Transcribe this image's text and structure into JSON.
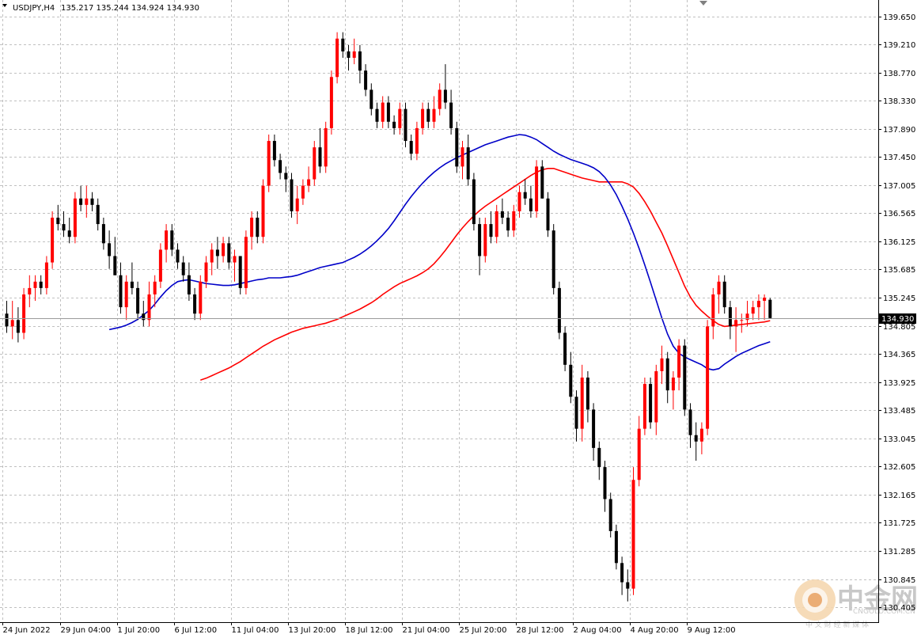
{
  "header": {
    "symbol": "USDJPY,H4",
    "ohlc": "135.217 135.244 134.924 134.930"
  },
  "price_tag": "134.930",
  "watermark": {
    "brand_cn": "中金网",
    "brand_url": "CNGOLD.COM.CN",
    "slogan_cn": "中 文 财 经 新 媒 体"
  },
  "colors": {
    "bull": "#ff0000",
    "bear": "#000000",
    "ma_fast": "#0000c8",
    "ma_slow": "#ff0000",
    "grid": "#c0c0c0"
  },
  "chart_data": {
    "type": "candlestick",
    "symbol": "USDJPY",
    "timeframe": "H4",
    "ylim": [
      130.265,
      139.85
    ],
    "y_ticks": [
      "139.650",
      "139.210",
      "138.770",
      "138.330",
      "137.890",
      "137.450",
      "137.005",
      "136.565",
      "136.125",
      "135.685",
      "135.245",
      "134.805",
      "134.365",
      "133.925",
      "133.485",
      "133.045",
      "132.605",
      "132.165",
      "131.725",
      "131.285",
      "130.845",
      "130.405"
    ],
    "x_ticks": [
      "24 Jun 2022",
      "29 Jun 04:00",
      "1 Jul 20:00",
      "6 Jul 12:00",
      "11 Jul 04:00",
      "13 Jul 20:00",
      "18 Jul 12:00",
      "21 Jul 04:00",
      "25 Jul 20:00",
      "28 Jul 12:00",
      "2 Aug 04:00",
      "4 Aug 20:00",
      "9 Aug 12:00"
    ],
    "grid": true,
    "last_price": 134.93,
    "candles": [
      [
        135.0,
        135.2,
        134.7,
        134.8
      ],
      [
        134.8,
        135.2,
        134.6,
        134.9
      ],
      [
        134.9,
        135.1,
        134.55,
        134.7
      ],
      [
        134.7,
        135.4,
        134.6,
        135.3
      ],
      [
        135.3,
        135.6,
        135.1,
        135.4
      ],
      [
        135.4,
        135.6,
        135.2,
        135.5
      ],
      [
        135.5,
        135.6,
        135.3,
        135.4
      ],
      [
        135.4,
        135.9,
        135.3,
        135.8
      ],
      [
        135.8,
        136.6,
        135.7,
        136.5
      ],
      [
        136.5,
        136.7,
        136.3,
        136.4
      ],
      [
        136.4,
        136.6,
        136.2,
        136.3
      ],
      [
        136.3,
        136.5,
        136.1,
        136.2
      ],
      [
        136.2,
        136.9,
        136.1,
        136.8
      ],
      [
        136.8,
        137.0,
        136.6,
        136.7
      ],
      [
        136.7,
        137.0,
        136.5,
        136.8
      ],
      [
        136.8,
        136.9,
        136.6,
        136.7
      ],
      [
        136.7,
        136.8,
        136.3,
        136.4
      ],
      [
        136.4,
        136.5,
        136.0,
        136.1
      ],
      [
        136.1,
        136.3,
        135.7,
        135.9
      ],
      [
        135.9,
        136.2,
        135.6,
        135.6
      ],
      [
        135.6,
        135.8,
        135.0,
        135.1
      ],
      [
        135.1,
        135.6,
        134.9,
        135.5
      ],
      [
        135.5,
        135.8,
        135.3,
        135.4
      ],
      [
        135.4,
        135.5,
        134.9,
        135.0
      ],
      [
        135.0,
        135.2,
        134.8,
        134.9
      ],
      [
        134.9,
        135.5,
        134.8,
        135.3
      ],
      [
        135.3,
        135.6,
        135.1,
        135.5
      ],
      [
        135.5,
        136.1,
        135.4,
        136.0
      ],
      [
        136.0,
        136.4,
        135.8,
        136.3
      ],
      [
        136.3,
        136.4,
        135.9,
        136.0
      ],
      [
        136.0,
        136.1,
        135.7,
        135.8
      ],
      [
        135.8,
        135.9,
        135.5,
        135.6
      ],
      [
        135.6,
        135.8,
        135.2,
        135.3
      ],
      [
        135.3,
        135.4,
        134.9,
        135.0
      ],
      [
        135.0,
        135.6,
        134.9,
        135.5
      ],
      [
        135.5,
        135.9,
        135.4,
        135.8
      ],
      [
        135.8,
        136.1,
        135.6,
        136.0
      ],
      [
        136.0,
        136.2,
        135.7,
        135.9
      ],
      [
        135.9,
        136.2,
        135.8,
        136.1
      ],
      [
        136.1,
        136.2,
        135.7,
        135.8
      ],
      [
        135.8,
        136.0,
        135.5,
        135.9
      ],
      [
        135.9,
        135.9,
        135.3,
        135.4
      ],
      [
        135.4,
        136.3,
        135.3,
        136.2
      ],
      [
        136.2,
        136.6,
        136.0,
        136.5
      ],
      [
        136.5,
        136.6,
        136.1,
        136.2
      ],
      [
        136.2,
        137.1,
        136.1,
        137.0
      ],
      [
        137.0,
        137.8,
        136.9,
        137.7
      ],
      [
        137.7,
        137.8,
        137.3,
        137.4
      ],
      [
        137.4,
        137.5,
        137.1,
        137.2
      ],
      [
        137.2,
        137.3,
        136.9,
        137.1
      ],
      [
        137.1,
        137.2,
        136.5,
        136.6
      ],
      [
        136.6,
        137.0,
        136.4,
        136.8
      ],
      [
        136.8,
        137.1,
        136.7,
        137.0
      ],
      [
        137.0,
        137.3,
        136.9,
        137.1
      ],
      [
        137.1,
        137.7,
        137.0,
        137.6
      ],
      [
        137.6,
        137.9,
        137.2,
        137.3
      ],
      [
        137.3,
        138.0,
        137.2,
        137.9
      ],
      [
        137.9,
        138.8,
        137.8,
        138.7
      ],
      [
        138.7,
        139.4,
        138.6,
        139.3
      ],
      [
        139.3,
        139.4,
        139.0,
        139.1
      ],
      [
        139.1,
        139.2,
        138.8,
        139.0
      ],
      [
        139.0,
        139.3,
        138.9,
        139.1
      ],
      [
        139.1,
        139.2,
        138.6,
        138.8
      ],
      [
        138.8,
        138.9,
        138.4,
        138.5
      ],
      [
        138.5,
        138.6,
        138.1,
        138.2
      ],
      [
        138.2,
        138.3,
        137.9,
        138.0
      ],
      [
        138.0,
        138.4,
        137.9,
        138.3
      ],
      [
        138.3,
        138.4,
        137.9,
        138.0
      ],
      [
        138.0,
        138.1,
        137.8,
        137.9
      ],
      [
        137.9,
        138.3,
        137.8,
        138.2
      ],
      [
        138.2,
        138.3,
        137.6,
        137.7
      ],
      [
        137.7,
        137.8,
        137.4,
        137.5
      ],
      [
        137.5,
        138.0,
        137.4,
        137.9
      ],
      [
        137.9,
        138.3,
        137.8,
        138.2
      ],
      [
        138.2,
        138.3,
        137.9,
        138.0
      ],
      [
        138.0,
        138.4,
        137.9,
        138.2
      ],
      [
        138.2,
        138.6,
        138.1,
        138.5
      ],
      [
        138.5,
        138.9,
        138.2,
        138.3
      ],
      [
        138.3,
        138.5,
        137.8,
        137.9
      ],
      [
        137.9,
        138.0,
        137.2,
        137.3
      ],
      [
        137.3,
        137.7,
        137.1,
        137.6
      ],
      [
        137.6,
        137.8,
        137.0,
        137.1
      ],
      [
        137.1,
        137.2,
        136.3,
        136.4
      ],
      [
        136.4,
        136.5,
        135.6,
        135.9
      ],
      [
        135.9,
        136.5,
        135.8,
        136.4
      ],
      [
        136.4,
        136.6,
        136.1,
        136.2
      ],
      [
        136.2,
        136.7,
        136.1,
        136.6
      ],
      [
        136.6,
        136.8,
        136.4,
        136.5
      ],
      [
        136.5,
        136.6,
        136.2,
        136.3
      ],
      [
        136.3,
        136.7,
        136.2,
        136.6
      ],
      [
        136.6,
        137.0,
        136.5,
        136.9
      ],
      [
        136.9,
        137.1,
        136.7,
        136.8
      ],
      [
        136.8,
        137.0,
        136.5,
        136.6
      ],
      [
        136.6,
        137.4,
        136.5,
        137.3
      ],
      [
        137.3,
        137.4,
        136.8,
        136.8
      ],
      [
        136.8,
        136.9,
        136.2,
        136.3
      ],
      [
        136.3,
        136.4,
        135.3,
        135.4
      ],
      [
        135.4,
        135.5,
        134.6,
        134.7
      ],
      [
        134.7,
        134.8,
        134.1,
        134.2
      ],
      [
        134.2,
        134.4,
        133.6,
        133.7
      ],
      [
        133.7,
        133.8,
        133.0,
        133.2
      ],
      [
        133.2,
        134.2,
        133.0,
        134.0
      ],
      [
        134.0,
        134.1,
        133.3,
        133.5
      ],
      [
        133.5,
        133.6,
        132.7,
        132.9
      ],
      [
        132.9,
        133.0,
        132.4,
        132.6
      ],
      [
        132.6,
        132.7,
        131.9,
        132.1
      ],
      [
        132.1,
        132.2,
        131.5,
        131.6
      ],
      [
        131.6,
        131.7,
        131.0,
        131.1
      ],
      [
        131.1,
        131.2,
        130.6,
        130.8
      ],
      [
        130.8,
        131.0,
        130.5,
        130.7
      ],
      [
        130.7,
        132.6,
        130.6,
        132.4
      ],
      [
        132.4,
        133.4,
        132.3,
        133.2
      ],
      [
        133.2,
        134.0,
        133.1,
        133.9
      ],
      [
        133.9,
        134.0,
        133.2,
        133.3
      ],
      [
        133.3,
        134.2,
        133.1,
        134.1
      ],
      [
        134.1,
        134.5,
        133.9,
        134.3
      ],
      [
        134.3,
        134.4,
        133.6,
        133.8
      ],
      [
        133.8,
        134.1,
        133.5,
        134.0
      ],
      [
        134.0,
        134.6,
        133.8,
        134.5
      ],
      [
        134.5,
        134.6,
        133.4,
        133.5
      ],
      [
        133.5,
        133.6,
        132.9,
        133.1
      ],
      [
        133.1,
        133.3,
        132.7,
        133.0
      ],
      [
        133.0,
        133.3,
        132.8,
        133.2
      ],
      [
        133.2,
        134.9,
        133.1,
        134.8
      ],
      [
        134.8,
        135.4,
        134.6,
        135.3
      ],
      [
        135.3,
        135.6,
        135.0,
        135.5
      ],
      [
        135.5,
        135.6,
        135.0,
        135.1
      ],
      [
        135.1,
        135.2,
        134.6,
        134.8
      ],
      [
        134.8,
        135.1,
        134.4,
        134.9
      ],
      [
        134.9,
        135.0,
        134.7,
        134.9
      ],
      [
        134.9,
        135.2,
        134.8,
        135.0
      ],
      [
        135.0,
        135.2,
        134.9,
        135.1
      ],
      [
        135.1,
        135.3,
        134.9,
        135.2
      ],
      [
        135.2,
        135.3,
        134.9,
        135.25
      ],
      [
        135.217,
        135.244,
        134.924,
        134.93
      ]
    ],
    "ma_fast": [
      134.75,
      134.77,
      134.79,
      134.82,
      134.86,
      134.91,
      134.98,
      135.05,
      135.15,
      135.26,
      135.36,
      135.44,
      135.5,
      135.52,
      135.53,
      135.51,
      135.49,
      135.47,
      135.46,
      135.45,
      135.44,
      135.44,
      135.45,
      135.47,
      135.49,
      135.51,
      135.53,
      135.54,
      135.56,
      135.56,
      135.56,
      135.57,
      135.58,
      135.6,
      135.63,
      135.66,
      135.69,
      135.72,
      135.74,
      135.76,
      135.78,
      135.8,
      135.84,
      135.88,
      135.93,
      135.99,
      136.06,
      136.14,
      136.23,
      136.33,
      136.45,
      136.58,
      136.71,
      136.83,
      136.94,
      137.04,
      137.13,
      137.21,
      137.28,
      137.34,
      137.39,
      137.44,
      137.48,
      137.52,
      137.56,
      137.6,
      137.64,
      137.67,
      137.7,
      137.73,
      137.76,
      137.78,
      137.8,
      137.79,
      137.76,
      137.72,
      137.66,
      137.6,
      137.54,
      137.49,
      137.45,
      137.41,
      137.38,
      137.35,
      137.32,
      137.28,
      137.22,
      137.13,
      137.01,
      136.86,
      136.68,
      136.48,
      136.26,
      136.02,
      135.76,
      135.49,
      135.21,
      134.93,
      134.68,
      134.49,
      134.38,
      134.32,
      134.28,
      134.24,
      134.2,
      134.14,
      134.12,
      134.14,
      134.21,
      134.27,
      134.33,
      134.38,
      134.42,
      134.46,
      134.5,
      134.53,
      134.56
    ],
    "ma_slow": [
      133.96,
      133.99,
      134.03,
      134.07,
      134.11,
      134.15,
      134.2,
      134.25,
      134.31,
      134.37,
      134.43,
      134.49,
      134.54,
      134.59,
      134.63,
      134.67,
      134.71,
      134.74,
      134.77,
      134.79,
      134.81,
      134.83,
      134.85,
      134.88,
      134.91,
      134.95,
      134.99,
      135.03,
      135.07,
      135.12,
      135.17,
      135.23,
      135.3,
      135.36,
      135.42,
      135.47,
      135.51,
      135.55,
      135.59,
      135.64,
      135.7,
      135.78,
      135.88,
      135.99,
      136.11,
      136.23,
      136.34,
      136.44,
      136.53,
      136.61,
      136.68,
      136.74,
      136.8,
      136.86,
      136.92,
      136.98,
      137.04,
      137.1,
      137.16,
      137.21,
      137.25,
      137.27,
      137.27,
      137.24,
      137.21,
      137.18,
      137.15,
      137.12,
      137.1,
      137.08,
      137.06,
      137.06,
      137.06,
      137.06,
      137.06,
      137.03,
      136.98,
      136.88,
      136.75,
      136.6,
      136.43,
      136.26,
      136.06,
      135.85,
      135.64,
      135.43,
      135.26,
      135.13,
      135.04,
      134.96,
      134.89,
      134.83,
      134.8,
      134.81,
      134.82,
      134.83,
      134.84,
      134.85,
      134.86,
      134.87,
      134.89
    ]
  }
}
